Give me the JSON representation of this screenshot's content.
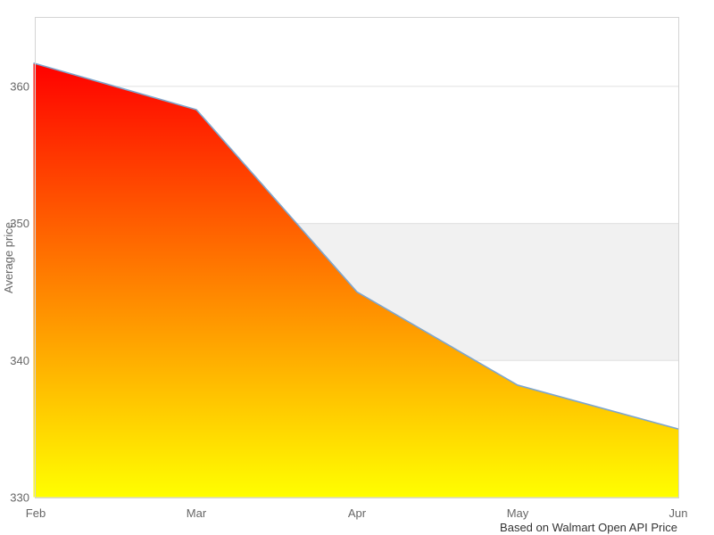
{
  "chart_data": {
    "type": "area",
    "title": "",
    "xlabel": "",
    "ylabel": "Average price",
    "caption": "Based on Walmart Open API Price",
    "x": [
      "Feb",
      "Mar",
      "Apr",
      "May",
      "Jun"
    ],
    "values": [
      361.7,
      358.3,
      345.0,
      338.2,
      335.0
    ],
    "yticks": [
      330,
      340,
      350,
      360
    ],
    "ylim": [
      330,
      365
    ],
    "grid": "horizontal",
    "legend_position": "none",
    "plot_band": {
      "from": 340,
      "to": 350,
      "color": "#f1f1f1"
    },
    "colors": {
      "line": "#7ea6cd",
      "area_gradient_top": "#ff0000",
      "area_gradient_bottom": "#ffff00",
      "gridline": "#e0e0e0",
      "plot_border": "#d4d4d4",
      "tick_label": "#666666",
      "axis_title": "#666666",
      "caption_text": "#333333",
      "background": "#ffffff"
    }
  }
}
